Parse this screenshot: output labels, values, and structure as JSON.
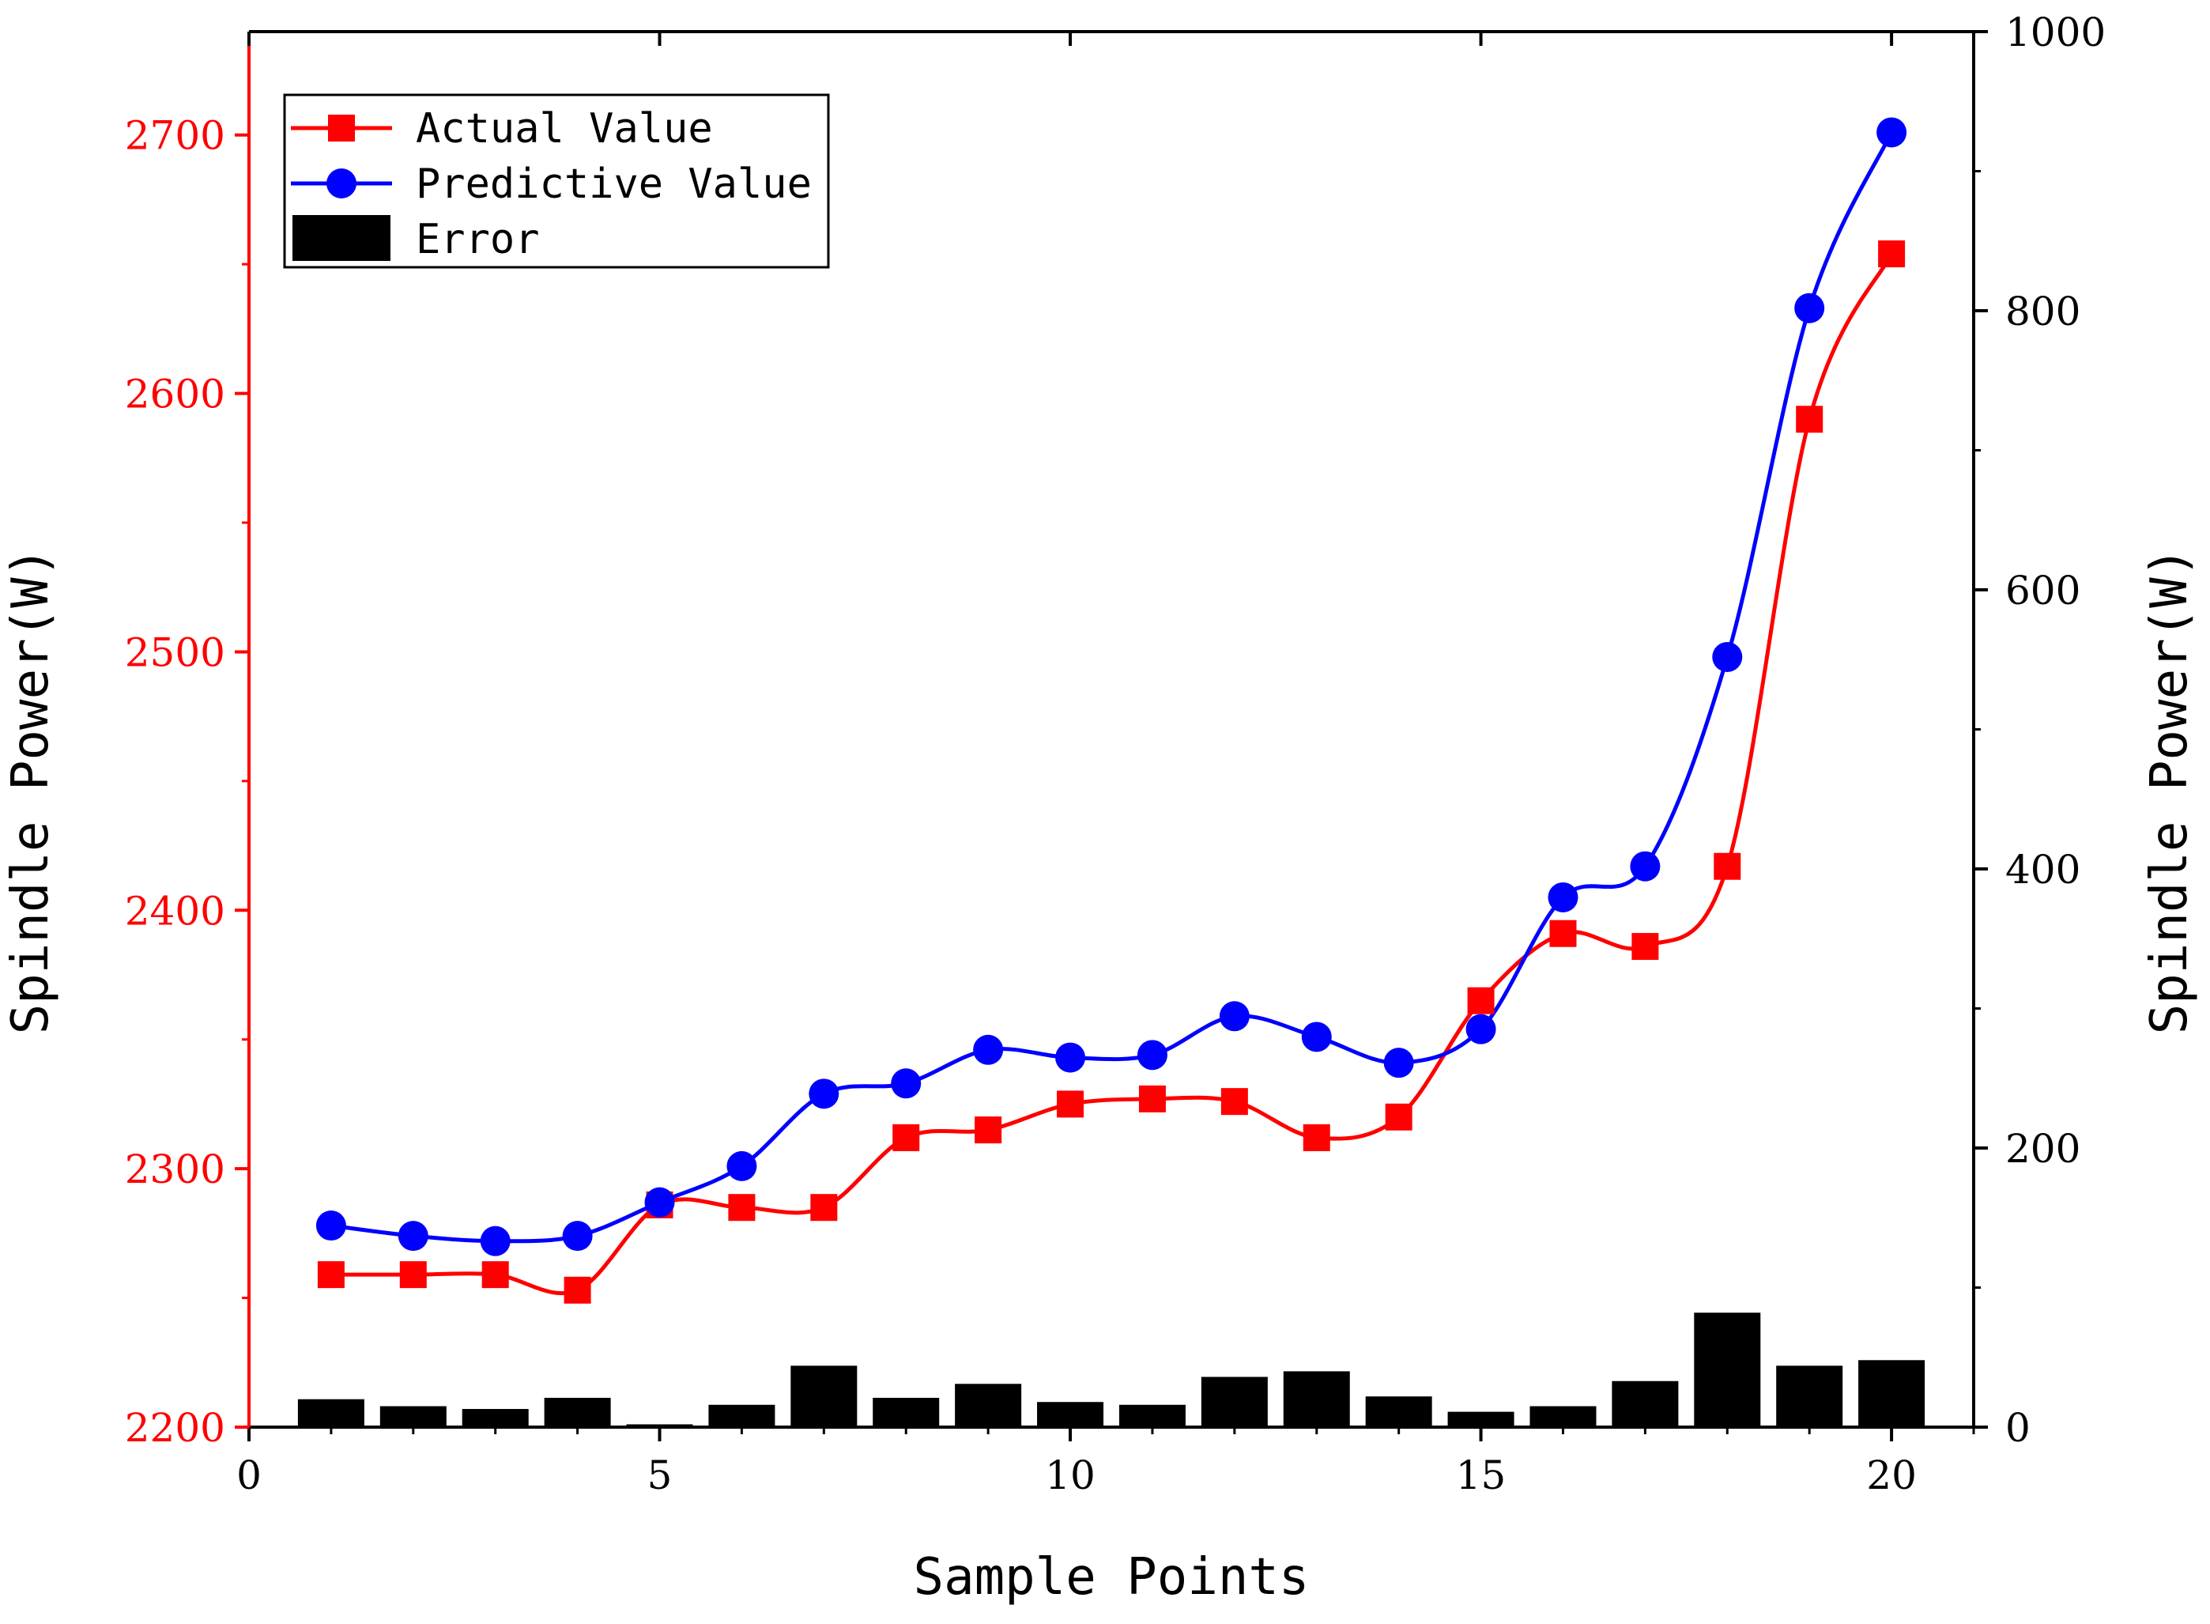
{
  "chart_data": {
    "type": "line",
    "title": "",
    "xlabel": "Sample Points",
    "ylabel_left": "Spindle Power(W)",
    "ylabel_right": "Spindle Power(W)",
    "xlim": [
      0,
      21
    ],
    "ylim_left": [
      2200,
      2740
    ],
    "ylim_right": [
      0,
      1000
    ],
    "x_ticks": [
      0,
      5,
      10,
      15,
      20
    ],
    "y_ticks_left": [
      2200,
      2300,
      2400,
      2500,
      2600,
      2700
    ],
    "y_ticks_right": [
      0,
      200,
      400,
      600,
      800,
      1000
    ],
    "legend_position": "top-left",
    "grid": false,
    "x": [
      1,
      2,
      3,
      4,
      5,
      6,
      7,
      8,
      9,
      10,
      11,
      12,
      13,
      14,
      15,
      16,
      17,
      18,
      19,
      20
    ],
    "series": [
      {
        "name": "Actual Value",
        "axis": "left",
        "color": "#ff0000",
        "marker": "square",
        "values": [
          2259,
          2259,
          2259,
          2253,
          2286,
          2285,
          2285,
          2312,
          2315,
          2325,
          2327,
          2326,
          2312,
          2320,
          2365,
          2391,
          2386,
          2417,
          2590,
          2654
        ]
      },
      {
        "name": "Predictive Value",
        "axis": "left",
        "color": "#0000ff",
        "marker": "circle",
        "values": [
          2278,
          2274,
          2272,
          2274,
          2287,
          2301,
          2329,
          2333,
          2346,
          2343,
          2344,
          2359,
          2351,
          2341,
          2354,
          2405,
          2417,
          2498,
          2633,
          2701
        ]
      },
      {
        "name": "Error",
        "axis": "right",
        "color": "#000000",
        "type": "bar",
        "values": [
          20,
          15,
          13,
          21,
          2,
          16,
          44,
          21,
          31,
          18,
          16,
          36,
          40,
          22,
          11,
          15,
          33,
          82,
          44,
          48
        ]
      }
    ],
    "colors": {
      "left_axis": "#ff0000",
      "right_axis": "#000000",
      "actual": "#ff0000",
      "predictive": "#0000ff",
      "error": "#000000"
    }
  }
}
